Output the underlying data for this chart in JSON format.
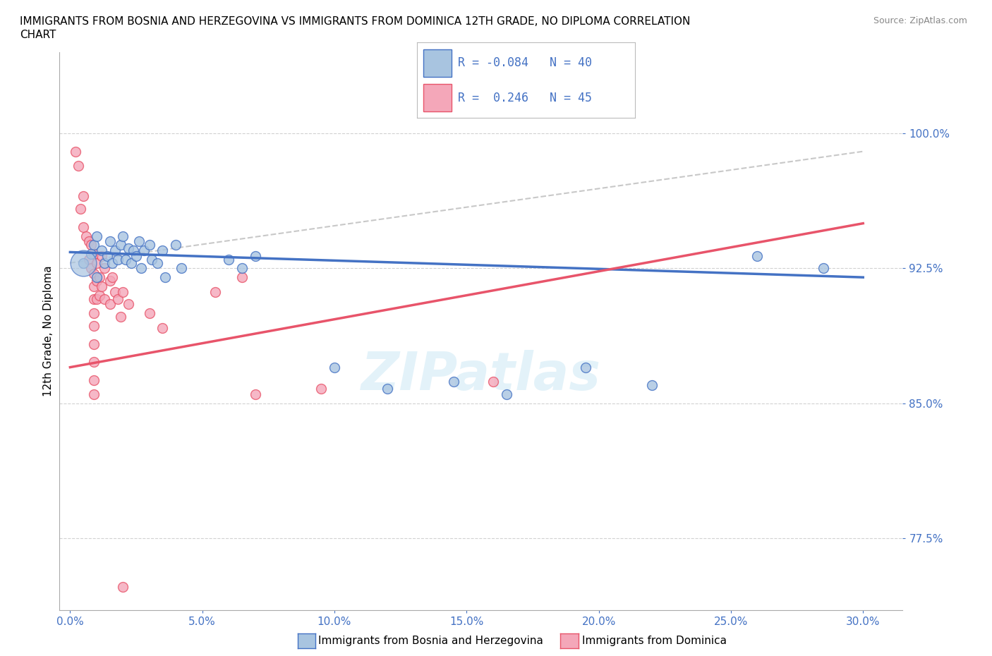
{
  "title": "IMMIGRANTS FROM BOSNIA AND HERZEGOVINA VS IMMIGRANTS FROM DOMINICA 12TH GRADE, NO DIPLOMA CORRELATION\nCHART",
  "source": "Source: ZipAtlas.com",
  "ytick_labels": [
    "77.5%",
    "85.0%",
    "92.5%",
    "100.0%"
  ],
  "ytick_values": [
    0.775,
    0.85,
    0.925,
    1.0
  ],
  "xtick_labels": [
    "0.0%",
    "5.0%",
    "10.0%",
    "15.0%",
    "20.0%",
    "25.0%",
    "30.0%"
  ],
  "xtick_values": [
    0.0,
    0.05,
    0.1,
    0.15,
    0.2,
    0.25,
    0.3
  ],
  "xlim": [
    -0.004,
    0.315
  ],
  "ylim": [
    0.735,
    1.045
  ],
  "blue_R": -0.084,
  "blue_N": 40,
  "pink_R": 0.246,
  "pink_N": 45,
  "blue_color": "#a8c4e0",
  "pink_color": "#f4a7b9",
  "blue_line_color": "#4472C4",
  "pink_line_color": "#E8546A",
  "blue_scatter": [
    [
      0.005,
      0.928
    ],
    [
      0.008,
      0.933
    ],
    [
      0.009,
      0.938
    ],
    [
      0.01,
      0.943
    ],
    [
      0.01,
      0.92
    ],
    [
      0.012,
      0.935
    ],
    [
      0.013,
      0.928
    ],
    [
      0.014,
      0.932
    ],
    [
      0.015,
      0.94
    ],
    [
      0.016,
      0.928
    ],
    [
      0.017,
      0.935
    ],
    [
      0.018,
      0.93
    ],
    [
      0.019,
      0.938
    ],
    [
      0.02,
      0.943
    ],
    [
      0.021,
      0.93
    ],
    [
      0.022,
      0.936
    ],
    [
      0.023,
      0.928
    ],
    [
      0.024,
      0.935
    ],
    [
      0.025,
      0.932
    ],
    [
      0.026,
      0.94
    ],
    [
      0.027,
      0.925
    ],
    [
      0.028,
      0.935
    ],
    [
      0.03,
      0.938
    ],
    [
      0.031,
      0.93
    ],
    [
      0.033,
      0.928
    ],
    [
      0.035,
      0.935
    ],
    [
      0.036,
      0.92
    ],
    [
      0.04,
      0.938
    ],
    [
      0.042,
      0.925
    ],
    [
      0.06,
      0.93
    ],
    [
      0.065,
      0.925
    ],
    [
      0.07,
      0.932
    ],
    [
      0.1,
      0.87
    ],
    [
      0.12,
      0.858
    ],
    [
      0.145,
      0.862
    ],
    [
      0.165,
      0.855
    ],
    [
      0.195,
      0.87
    ],
    [
      0.22,
      0.86
    ],
    [
      0.26,
      0.932
    ],
    [
      0.285,
      0.925
    ]
  ],
  "blue_scatter_sizes": [
    80,
    80,
    80,
    80,
    80,
    80,
    80,
    80,
    80,
    80,
    80,
    80,
    80,
    80,
    80,
    80,
    80,
    80,
    80,
    80,
    80,
    80,
    80,
    80,
    80,
    80,
    80,
    80,
    80,
    80,
    80,
    80,
    80,
    80,
    80,
    80,
    80,
    80,
    80,
    80
  ],
  "blue_large_point": [
    0.005,
    0.928
  ],
  "pink_scatter": [
    [
      0.002,
      0.99
    ],
    [
      0.003,
      0.982
    ],
    [
      0.004,
      0.958
    ],
    [
      0.005,
      0.965
    ],
    [
      0.005,
      0.948
    ],
    [
      0.006,
      0.943
    ],
    [
      0.007,
      0.94
    ],
    [
      0.007,
      0.93
    ],
    [
      0.008,
      0.938
    ],
    [
      0.008,
      0.925
    ],
    [
      0.009,
      0.933
    ],
    [
      0.009,
      0.922
    ],
    [
      0.009,
      0.915
    ],
    [
      0.009,
      0.908
    ],
    [
      0.009,
      0.9
    ],
    [
      0.009,
      0.893
    ],
    [
      0.009,
      0.883
    ],
    [
      0.009,
      0.873
    ],
    [
      0.009,
      0.863
    ],
    [
      0.009,
      0.855
    ],
    [
      0.01,
      0.928
    ],
    [
      0.01,
      0.918
    ],
    [
      0.01,
      0.908
    ],
    [
      0.011,
      0.92
    ],
    [
      0.011,
      0.91
    ],
    [
      0.012,
      0.932
    ],
    [
      0.012,
      0.915
    ],
    [
      0.013,
      0.925
    ],
    [
      0.013,
      0.908
    ],
    [
      0.015,
      0.918
    ],
    [
      0.015,
      0.905
    ],
    [
      0.016,
      0.92
    ],
    [
      0.017,
      0.912
    ],
    [
      0.018,
      0.908
    ],
    [
      0.019,
      0.898
    ],
    [
      0.02,
      0.912
    ],
    [
      0.022,
      0.905
    ],
    [
      0.03,
      0.9
    ],
    [
      0.035,
      0.892
    ],
    [
      0.055,
      0.912
    ],
    [
      0.065,
      0.92
    ],
    [
      0.07,
      0.855
    ],
    [
      0.095,
      0.858
    ],
    [
      0.16,
      0.862
    ],
    [
      0.02,
      0.748
    ]
  ],
  "watermark": "ZIPatlas",
  "grid_color": "#cccccc",
  "axis_label_color": "#4472C4",
  "tick_label_color": "#4472C4",
  "blue_trend_x": [
    0.0,
    0.3
  ],
  "blue_trend_y": [
    0.934,
    0.92
  ],
  "pink_trend_x": [
    0.0,
    0.3
  ],
  "pink_trend_y": [
    0.87,
    0.95
  ],
  "dash_trend_x": [
    0.0,
    0.3
  ],
  "dash_trend_y": [
    0.928,
    0.99
  ]
}
